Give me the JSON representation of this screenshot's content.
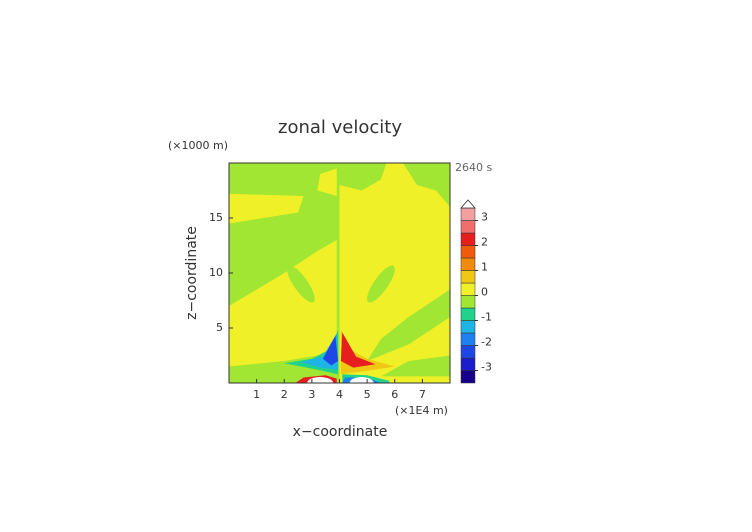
{
  "chart_data": {
    "type": "contour",
    "title": "zonal velocity",
    "x_label": "x−coordinate",
    "y_label": "z−coordinate",
    "x_unit_label": "(×1E4 m)",
    "y_unit_label": "(×1000 m)",
    "time_label": "2640 s",
    "xlim": [
      0,
      8
    ],
    "xticks": [
      1,
      2,
      3,
      4,
      5,
      6,
      7
    ],
    "ylim": [
      0,
      20
    ],
    "yticks": [
      5,
      10,
      15
    ],
    "colorbar": {
      "levels": [
        -3.5,
        -3,
        -2.5,
        -2,
        -1.5,
        -1,
        -0.5,
        0,
        0.5,
        1,
        1.5,
        2,
        2.5,
        3,
        3.5
      ],
      "colors": [
        "#16008a",
        "#1c1ccc",
        "#1f47e6",
        "#2080f0",
        "#1eb4e6",
        "#20d28c",
        "#a0e632",
        "#f0f028",
        "#f0c814",
        "#f08c0a",
        "#f05a0a",
        "#e61e1e",
        "#f06e6e",
        "#f0a0a0"
      ],
      "over_color": "#ffffff",
      "ticks": [
        -3,
        -2,
        -1,
        0,
        1,
        2,
        3
      ]
    }
  }
}
